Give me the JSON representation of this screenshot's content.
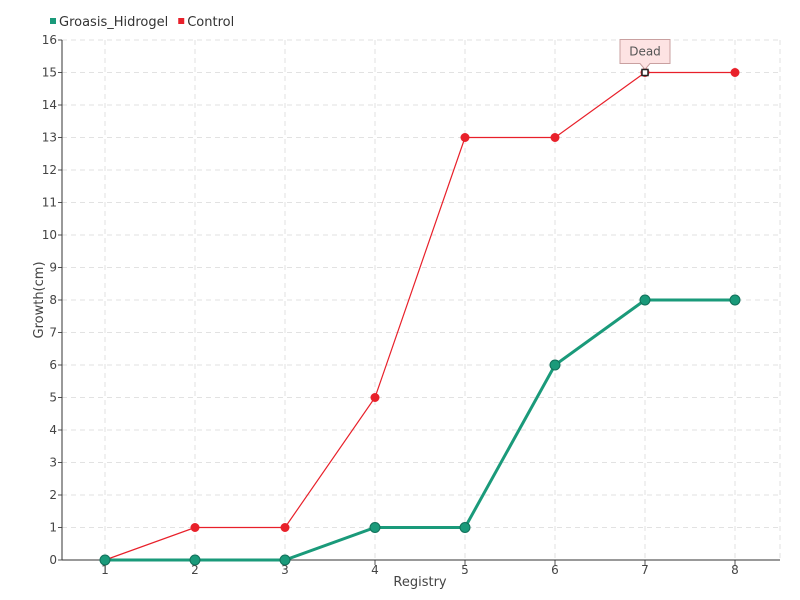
{
  "chart_data": {
    "type": "line",
    "title": "",
    "xlabel": "Registry",
    "ylabel": "Growth(cm)",
    "categories": [
      "1",
      "2",
      "3",
      "4",
      "5",
      "6",
      "7",
      "8"
    ],
    "ylim": [
      0,
      16
    ],
    "yticks": [
      "0",
      "1",
      "2",
      "3",
      "4",
      "5",
      "6",
      "7",
      "8",
      "9",
      "10",
      "11",
      "12",
      "13",
      "14",
      "15",
      "16"
    ],
    "grid": true,
    "legend_position": "top-left",
    "series": [
      {
        "name": "Groasis_Hidrogel",
        "color": "#1a9a7a",
        "values": [
          0,
          0,
          0,
          1,
          1,
          6,
          8,
          8
        ]
      },
      {
        "name": "Control",
        "color": "#e8202a",
        "values": [
          0,
          1,
          1,
          5,
          13,
          13,
          15,
          15
        ]
      }
    ],
    "annotations": [
      {
        "text": "Dead",
        "series": "Control",
        "category": "7"
      }
    ]
  }
}
